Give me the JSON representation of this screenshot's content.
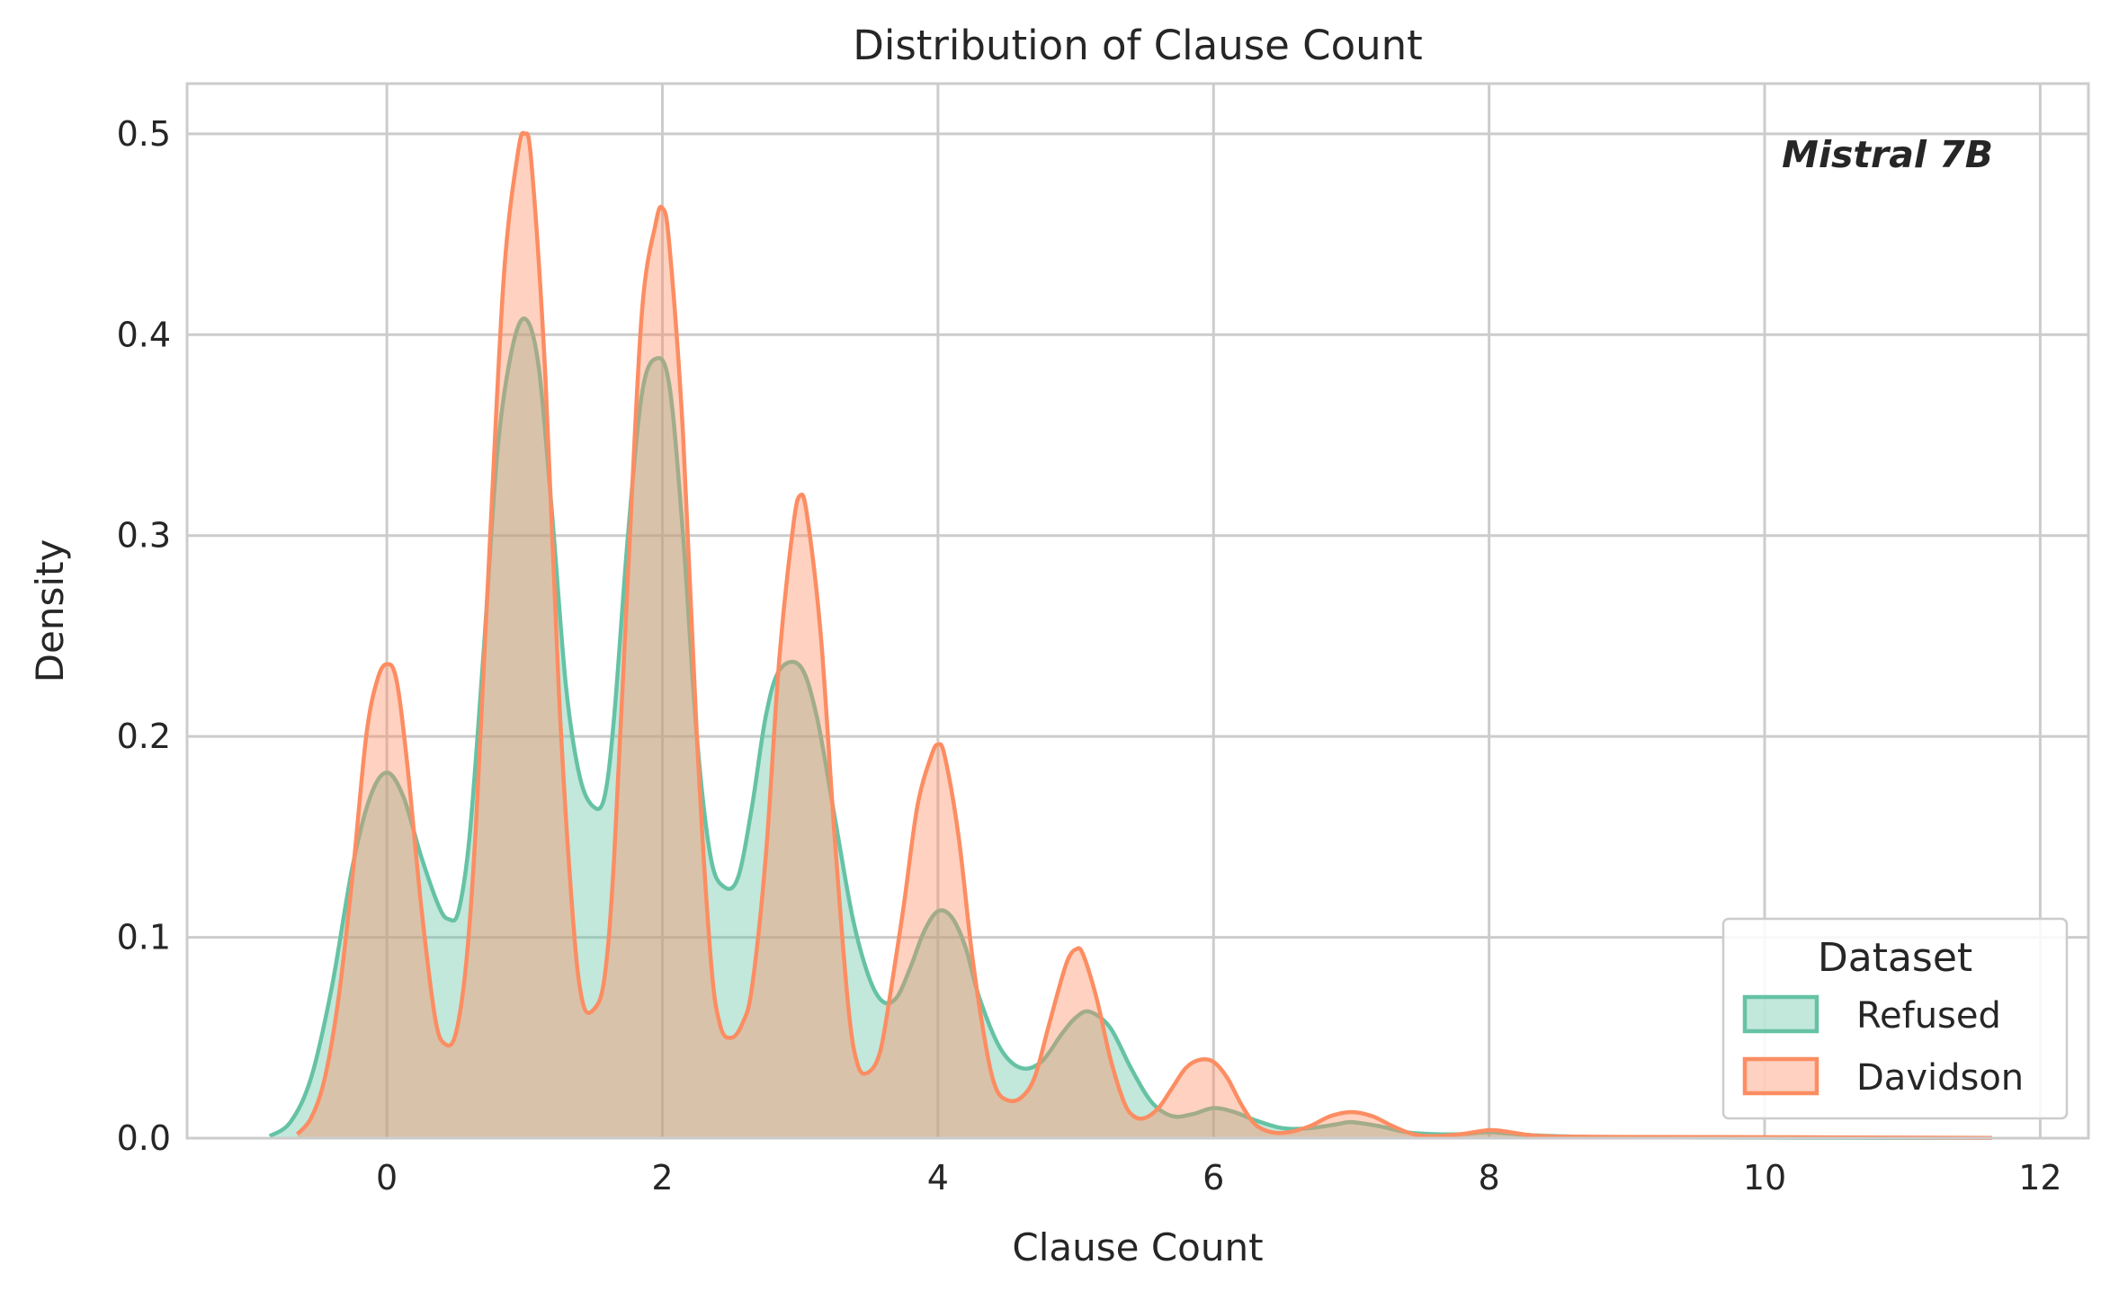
{
  "chart_data": {
    "type": "area",
    "title": "Distribution of Clause Count",
    "xlabel": "Clause Count",
    "ylabel": "Density",
    "xlim": [
      -1.45,
      12.35
    ],
    "ylim": [
      0,
      0.525
    ],
    "xticks": [
      0,
      2,
      4,
      6,
      8,
      10,
      12
    ],
    "yticks": [
      0.0,
      0.1,
      0.2,
      0.3,
      0.4,
      0.5
    ],
    "xtick_labels": [
      "0",
      "2",
      "4",
      "6",
      "8",
      "10",
      "12"
    ],
    "ytick_labels": [
      "0.0",
      "0.1",
      "0.2",
      "0.3",
      "0.4",
      "0.5"
    ],
    "grid": true,
    "legend": {
      "title": "Dataset",
      "position": "lower-right"
    },
    "annotation": "Mistral 7B",
    "series": [
      {
        "name": "Refused",
        "color": "#66c2a5",
        "x": [
          -0.85,
          -0.7,
          -0.55,
          -0.4,
          -0.25,
          -0.12,
          0.0,
          0.12,
          0.25,
          0.38,
          0.45,
          0.52,
          0.6,
          0.7,
          0.8,
          0.9,
          1.0,
          1.1,
          1.2,
          1.3,
          1.4,
          1.5,
          1.58,
          1.65,
          1.75,
          1.85,
          1.95,
          2.05,
          2.15,
          2.25,
          2.35,
          2.45,
          2.55,
          2.65,
          2.75,
          2.85,
          3.0,
          3.12,
          3.25,
          3.38,
          3.5,
          3.6,
          3.7,
          3.8,
          3.9,
          4.0,
          4.1,
          4.2,
          4.3,
          4.45,
          4.6,
          4.75,
          4.9,
          5.0,
          5.1,
          5.25,
          5.4,
          5.55,
          5.7,
          5.85,
          6.0,
          6.15,
          6.3,
          6.5,
          6.7,
          6.9,
          7.0,
          7.2,
          7.4,
          7.6,
          7.8,
          8.0,
          8.3,
          8.6,
          9.0,
          10.0,
          11.0,
          11.65
        ],
        "y": [
          0.001,
          0.008,
          0.03,
          0.075,
          0.135,
          0.17,
          0.182,
          0.17,
          0.14,
          0.115,
          0.109,
          0.113,
          0.15,
          0.24,
          0.34,
          0.39,
          0.408,
          0.385,
          0.31,
          0.225,
          0.18,
          0.165,
          0.17,
          0.21,
          0.3,
          0.37,
          0.388,
          0.375,
          0.3,
          0.2,
          0.14,
          0.125,
          0.13,
          0.165,
          0.21,
          0.233,
          0.235,
          0.21,
          0.16,
          0.11,
          0.08,
          0.068,
          0.07,
          0.085,
          0.103,
          0.113,
          0.11,
          0.095,
          0.07,
          0.045,
          0.035,
          0.038,
          0.052,
          0.06,
          0.063,
          0.055,
          0.035,
          0.018,
          0.011,
          0.012,
          0.015,
          0.013,
          0.009,
          0.005,
          0.005,
          0.007,
          0.008,
          0.006,
          0.003,
          0.002,
          0.002,
          0.003,
          0.0015,
          0.0008,
          0.0004,
          0.0002,
          0.0001,
          0.0001
        ]
      },
      {
        "name": "Davidson",
        "color": "#fc8d62",
        "x": [
          -0.65,
          -0.55,
          -0.45,
          -0.35,
          -0.25,
          -0.15,
          -0.07,
          0.0,
          0.07,
          0.15,
          0.25,
          0.35,
          0.42,
          0.5,
          0.58,
          0.65,
          0.75,
          0.85,
          0.95,
          1.0,
          1.05,
          1.15,
          1.25,
          1.35,
          1.42,
          1.5,
          1.58,
          1.65,
          1.75,
          1.85,
          1.95,
          2.0,
          2.05,
          2.15,
          2.25,
          2.35,
          2.42,
          2.5,
          2.58,
          2.65,
          2.75,
          2.85,
          2.95,
          3.0,
          3.05,
          3.15,
          3.25,
          3.35,
          3.42,
          3.5,
          3.58,
          3.65,
          3.75,
          3.85,
          3.95,
          4.0,
          4.05,
          4.15,
          4.25,
          4.35,
          4.42,
          4.5,
          4.6,
          4.7,
          4.8,
          4.9,
          4.95,
          5.0,
          5.05,
          5.15,
          5.25,
          5.35,
          5.42,
          5.5,
          5.6,
          5.7,
          5.8,
          5.9,
          6.0,
          6.1,
          6.2,
          6.3,
          6.42,
          6.55,
          6.7,
          6.85,
          7.0,
          7.15,
          7.3,
          7.45,
          7.6,
          7.8,
          8.0,
          8.15,
          8.3,
          8.5,
          9.0,
          10.0,
          11.0,
          11.65
        ],
        "y": [
          0.002,
          0.01,
          0.03,
          0.07,
          0.13,
          0.2,
          0.228,
          0.236,
          0.228,
          0.185,
          0.115,
          0.06,
          0.047,
          0.052,
          0.09,
          0.16,
          0.3,
          0.43,
          0.49,
          0.5,
          0.485,
          0.38,
          0.22,
          0.11,
          0.068,
          0.064,
          0.08,
          0.14,
          0.28,
          0.41,
          0.455,
          0.463,
          0.445,
          0.35,
          0.2,
          0.09,
          0.056,
          0.05,
          0.057,
          0.075,
          0.14,
          0.24,
          0.305,
          0.32,
          0.31,
          0.25,
          0.15,
          0.065,
          0.036,
          0.033,
          0.043,
          0.07,
          0.115,
          0.165,
          0.19,
          0.196,
          0.19,
          0.15,
          0.09,
          0.045,
          0.025,
          0.019,
          0.02,
          0.03,
          0.055,
          0.08,
          0.09,
          0.094,
          0.092,
          0.07,
          0.04,
          0.018,
          0.011,
          0.01,
          0.015,
          0.025,
          0.035,
          0.039,
          0.038,
          0.03,
          0.017,
          0.007,
          0.003,
          0.003,
          0.006,
          0.011,
          0.013,
          0.011,
          0.006,
          0.002,
          0.001,
          0.002,
          0.004,
          0.003,
          0.0015,
          0.0008,
          0.0006,
          0.0005,
          0.0003,
          0.0001
        ]
      }
    ]
  }
}
